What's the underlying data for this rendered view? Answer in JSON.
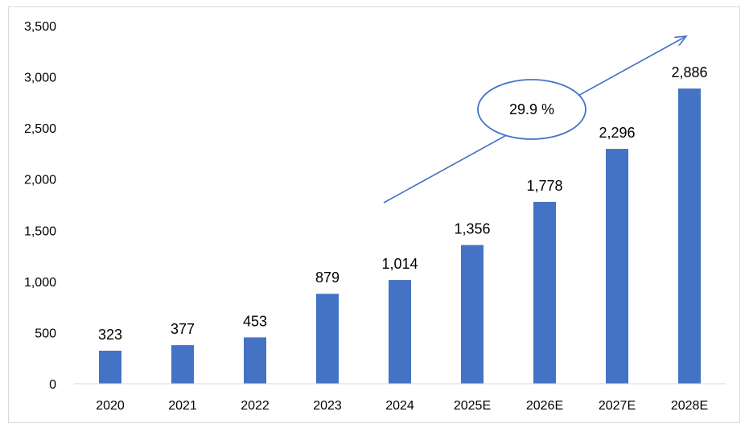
{
  "chart_data": {
    "type": "bar",
    "title": "",
    "xlabel": "",
    "ylabel": "",
    "categories": [
      "2020",
      "2021",
      "2022",
      "2023",
      "2024",
      "2025E",
      "2026E",
      "2027E",
      "2028E"
    ],
    "values": [
      323,
      377,
      453,
      879,
      1014,
      1356,
      1778,
      2296,
      2886
    ],
    "data_labels": [
      "323",
      "377",
      "453",
      "879",
      "1,014",
      "1,356",
      "1,778",
      "2,296",
      "2,886"
    ],
    "ylim": [
      0,
      3500
    ],
    "yticks": [
      0,
      500,
      1000,
      1500,
      2000,
      2500,
      3000,
      3500
    ],
    "ytick_labels": [
      "0",
      "500",
      "1,000",
      "1,500",
      "2,000",
      "2,500",
      "3,000",
      "3,500"
    ],
    "grid": false,
    "legend": "none",
    "bar_color": "#4472C4",
    "annotation": {
      "type": "growth-arrow",
      "label": "29.9 %",
      "color": "#4472C4"
    }
  }
}
